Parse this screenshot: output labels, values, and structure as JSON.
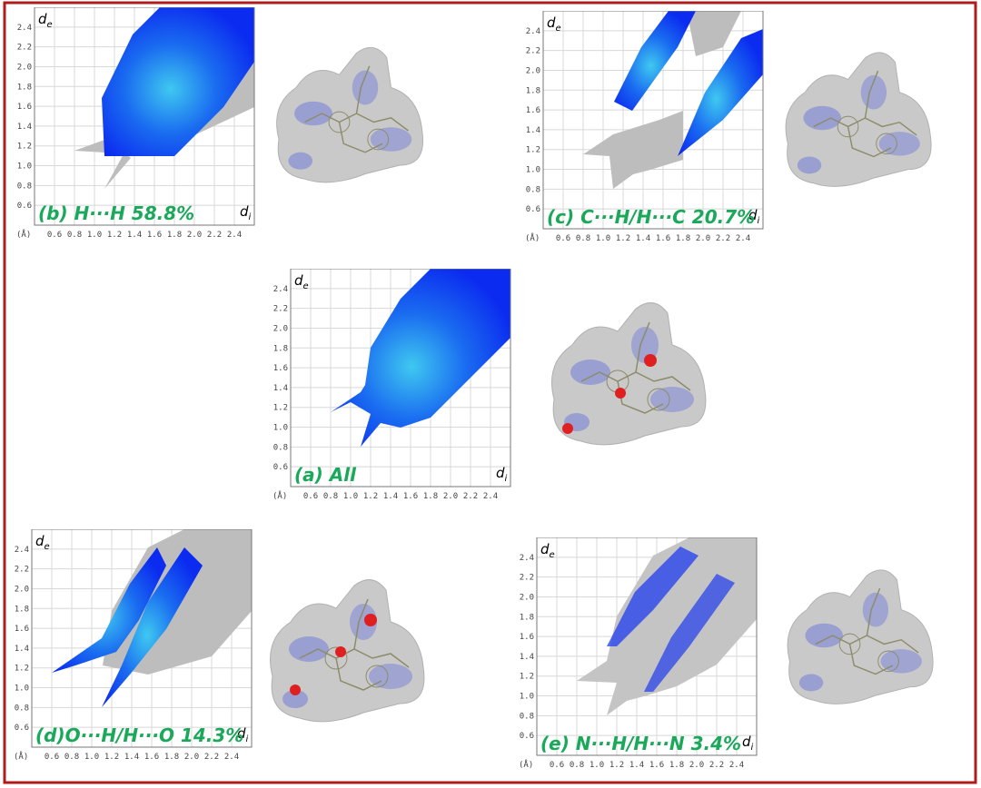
{
  "axis": {
    "unit": "(Å)",
    "range": [
      0.4,
      2.6
    ],
    "ticks": [
      0.6,
      0.8,
      {
        "value": 1,
        "label": "1.0"
      },
      1.2,
      1.4,
      1.6,
      1.8,
      {
        "value": 2,
        "label": "2.0"
      },
      2.2,
      2.4
    ],
    "x_label": {
      "symbol": "d",
      "subscript": "i"
    },
    "y_label": {
      "symbol": "d",
      "subscript": "e"
    }
  },
  "panels": [
    {
      "label": "(b) H···H  58.8%"
    },
    {
      "label": "(c) C···H/H···C 20.7%"
    },
    {
      "label": "(a) All"
    },
    {
      "label": "(d)O···H/H···O 14.3%"
    },
    {
      "label": "(e) N···H/H···N 3.4%"
    }
  ]
}
